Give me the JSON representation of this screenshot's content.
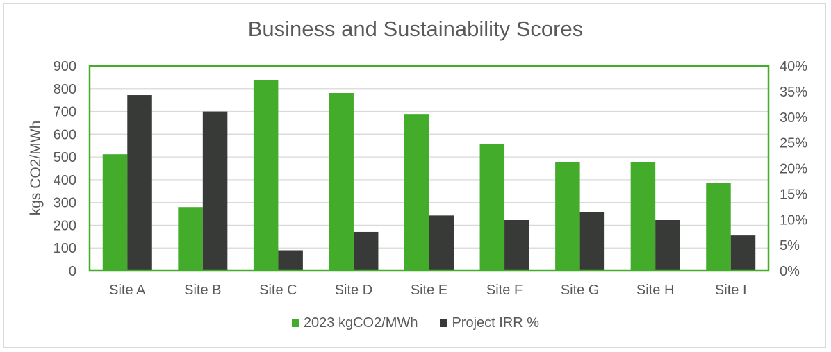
{
  "chart_data": {
    "type": "bar",
    "title": "Business and Sustainability Scores",
    "ylabel": "kgs CO2/MWh",
    "ylabel_right": "",
    "xlabel": "",
    "categories": [
      "Site A",
      "Site B",
      "Site C",
      "Site D",
      "Site E",
      "Site F",
      "Site G",
      "Site H",
      "Site I"
    ],
    "series": [
      {
        "name": "2023 kgCO2/MWh",
        "axis": "left",
        "color": "#43ac2a",
        "values": [
          512,
          280,
          839,
          781,
          689,
          558,
          479,
          479,
          387
        ]
      },
      {
        "name": "Project IRR %",
        "axis": "right",
        "color": "#383a37",
        "values": [
          34.3,
          31.1,
          4.0,
          7.6,
          10.8,
          9.9,
          11.5,
          9.9,
          6.9
        ]
      }
    ],
    "ylim": [
      0,
      900
    ],
    "yticks": [
      "0",
      "100",
      "200",
      "300",
      "400",
      "500",
      "600",
      "700",
      "800",
      "900"
    ],
    "ylim_right": [
      0,
      40
    ],
    "yticks_right": [
      "0%",
      "5%",
      "10%",
      "15%",
      "20%",
      "25%",
      "30%",
      "35%",
      "40%"
    ],
    "grid": true,
    "legend": "bottom",
    "plot_border_color": "#43ac2a"
  }
}
